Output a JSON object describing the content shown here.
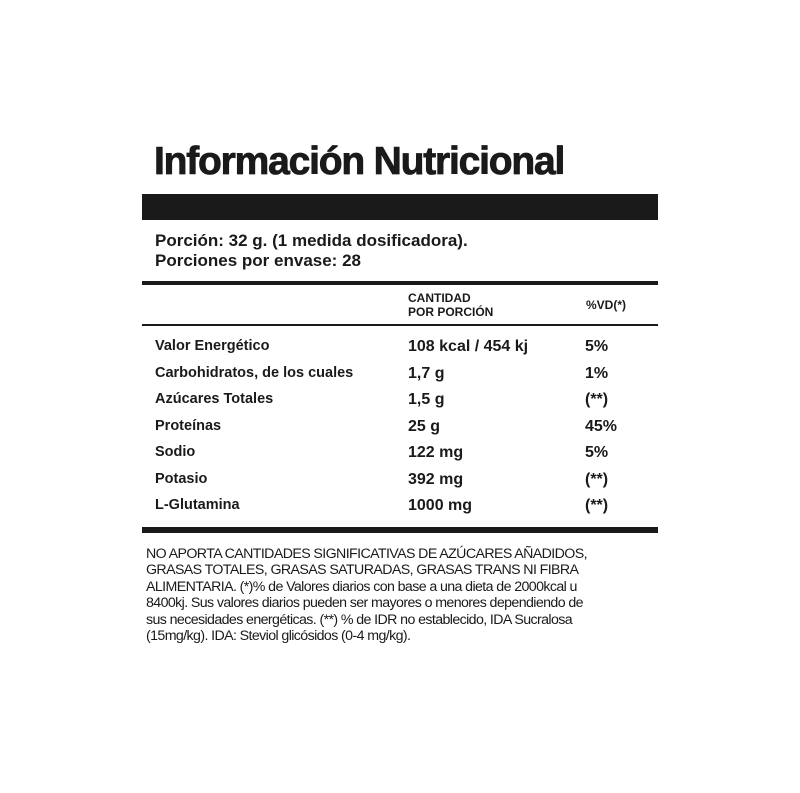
{
  "title": "Información Nutricional",
  "serving": {
    "portion": "Porción: 32 g. (1 medida dosificadora).",
    "per_container": "Porciones por envase: 28"
  },
  "table": {
    "headers": {
      "amount_line1": "CANTIDAD",
      "amount_line2": "POR PORCIÓN",
      "dv": "%VD(*)"
    },
    "rows": [
      {
        "name": "Valor Energético",
        "amount": "108 kcal / 454 kj",
        "dv": "5%"
      },
      {
        "name": "Carbohidratos, de los cuales",
        "amount": "1,7 g",
        "dv": "1%"
      },
      {
        "name": "Azúcares Totales",
        "amount": "1,5 g",
        "dv": "(**)"
      },
      {
        "name": "Proteínas",
        "amount": "25 g",
        "dv": "45%"
      },
      {
        "name": "Sodio",
        "amount": "122 mg",
        "dv": "5%"
      },
      {
        "name": "Potasio",
        "amount": "392 mg",
        "dv": "(**)"
      },
      {
        "name": "L-Glutamina",
        "amount": "1000 mg",
        "dv": "(**)"
      }
    ]
  },
  "footnote_lines": [
    "NO APORTA CANTIDADES SIGNIFICATIVAS DE AZÚCARES AÑADIDOS,",
    "GRASAS TOTALES, GRASAS SATURADAS, GRASAS TRANS NI FIBRA",
    "ALIMENTARIA. (*)% de Valores diarios con base a una dieta de 2000kcal u",
    "8400kj. Sus valores diarios pueden ser mayores o menores dependiendo de",
    "sus necesidades energéticas. (**) % de IDR no establecido,  IDA Sucralosa",
    "(15mg/kg). IDA: Steviol glicósidos (0-4 mg/kg)."
  ]
}
